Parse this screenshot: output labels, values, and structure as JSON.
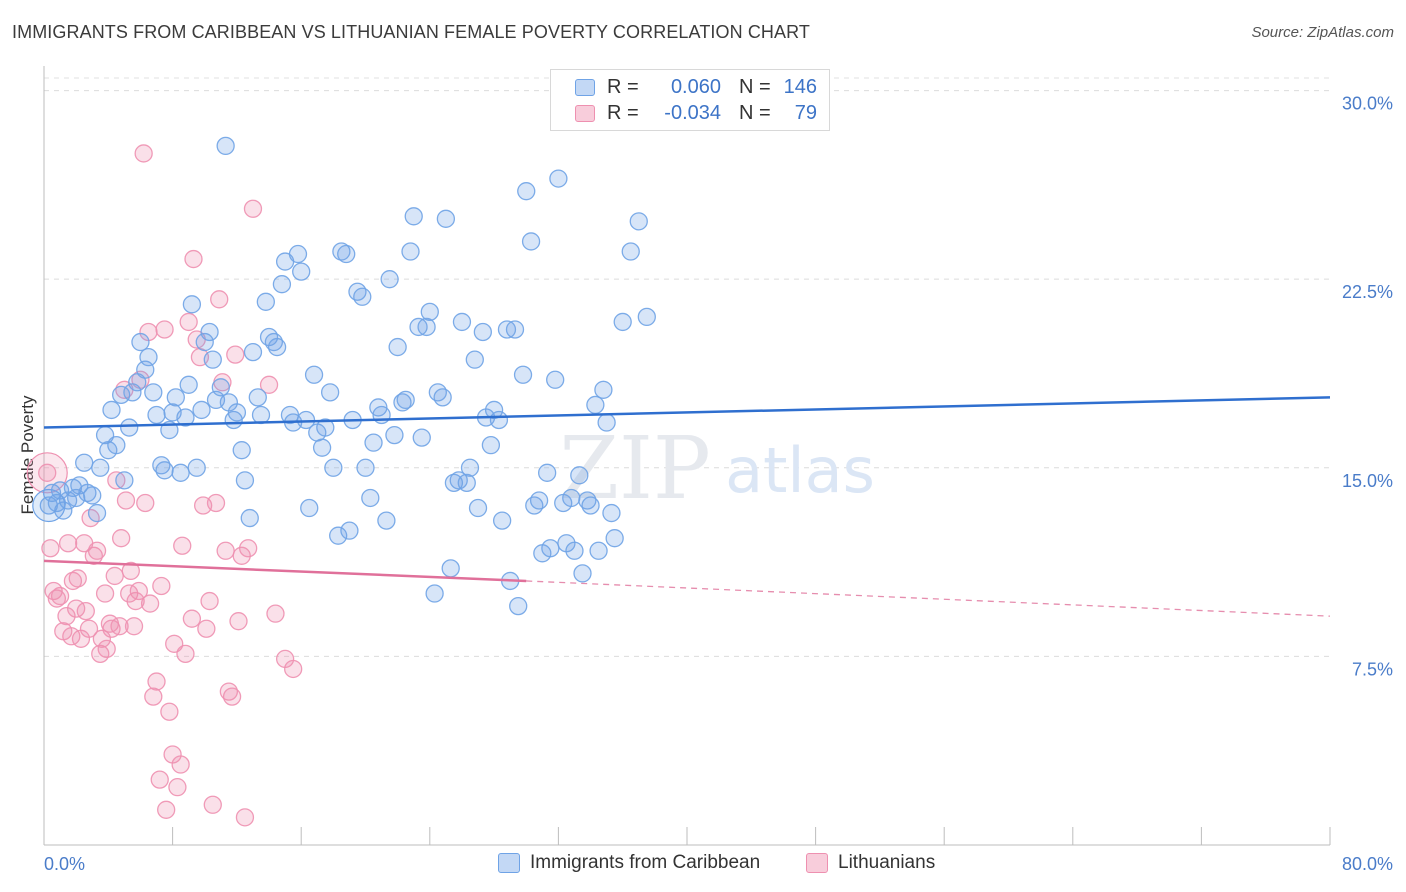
{
  "title": "IMMIGRANTS FROM CARIBBEAN VS LITHUANIAN FEMALE POVERTY CORRELATION CHART",
  "source": "Source: ZipAtlas.com",
  "watermark": {
    "zip": "ZIP",
    "atlas": "atlas"
  },
  "colors": {
    "blue": "#6fa3e6",
    "blue_line": "#2f6fcf",
    "pink": "#ee90b0",
    "pink_line": "#e0709a",
    "tick_text": "#4a7cc9"
  },
  "legend": {
    "rows": [
      {
        "series": "Immigrants from Caribbean",
        "r_label": "R =",
        "r_value": "0.060",
        "n_label": "N =",
        "n_value": "146"
      },
      {
        "series": "Lithuanians",
        "r_label": "R =",
        "r_value": "-0.034",
        "n_label": "N =",
        "n_value": "79"
      }
    ]
  },
  "bottom_legend": [
    "Immigrants from Caribbean",
    "Lithuanians"
  ],
  "chart_data": {
    "type": "scatter",
    "title": "IMMIGRANTS FROM CARIBBEAN VS LITHUANIAN FEMALE POVERTY CORRELATION CHART",
    "xlabel": "",
    "ylabel": "Female Poverty",
    "xlim": [
      0,
      80
    ],
    "ylim": [
      0,
      30.5
    ],
    "y_ticks": [
      7.5,
      15.0,
      22.5,
      30.0
    ],
    "y_tick_labels": [
      "7.5%",
      "15.0%",
      "22.5%",
      "30.0%"
    ],
    "x_tick_labels": [
      "0.0%",
      "80.0%"
    ],
    "grid": true,
    "series": [
      {
        "name": "Immigrants from Caribbean",
        "r": 0.06,
        "n": 146,
        "trend": {
          "x": [
            0,
            80
          ],
          "y": [
            16.6,
            17.8
          ]
        },
        "points": [
          [
            0.3,
            13.5
          ],
          [
            0.5,
            14.0
          ],
          [
            0.8,
            13.6
          ],
          [
            1.0,
            14.1
          ],
          [
            1.2,
            13.3
          ],
          [
            1.5,
            13.7
          ],
          [
            1.8,
            14.2
          ],
          [
            2.0,
            13.8
          ],
          [
            2.2,
            14.3
          ],
          [
            2.5,
            15.2
          ],
          [
            2.7,
            14.0
          ],
          [
            3.0,
            13.9
          ],
          [
            3.3,
            13.2
          ],
          [
            3.5,
            15.0
          ],
          [
            3.8,
            16.3
          ],
          [
            4.0,
            15.7
          ],
          [
            4.2,
            17.3
          ],
          [
            4.5,
            15.9
          ],
          [
            4.8,
            17.9
          ],
          [
            5.0,
            14.5
          ],
          [
            5.3,
            16.6
          ],
          [
            5.5,
            18.0
          ],
          [
            5.8,
            18.4
          ],
          [
            6.0,
            20.0
          ],
          [
            6.3,
            18.9
          ],
          [
            6.5,
            19.4
          ],
          [
            6.8,
            18.0
          ],
          [
            7.0,
            17.1
          ],
          [
            7.3,
            15.1
          ],
          [
            7.5,
            14.9
          ],
          [
            7.8,
            16.5
          ],
          [
            8.0,
            17.2
          ],
          [
            8.2,
            17.8
          ],
          [
            8.5,
            14.8
          ],
          [
            8.8,
            17.0
          ],
          [
            9.0,
            18.3
          ],
          [
            9.2,
            21.5
          ],
          [
            9.5,
            15.0
          ],
          [
            9.8,
            17.3
          ],
          [
            10.0,
            20.0
          ],
          [
            10.3,
            20.4
          ],
          [
            10.5,
            19.3
          ],
          [
            10.7,
            17.7
          ],
          [
            11.0,
            18.2
          ],
          [
            11.3,
            27.8
          ],
          [
            11.5,
            17.6
          ],
          [
            11.8,
            16.9
          ],
          [
            12.0,
            17.2
          ],
          [
            12.3,
            15.7
          ],
          [
            12.5,
            14.5
          ],
          [
            12.8,
            13.0
          ],
          [
            13.0,
            19.6
          ],
          [
            13.3,
            17.8
          ],
          [
            13.5,
            17.1
          ],
          [
            13.8,
            21.6
          ],
          [
            14.0,
            20.2
          ],
          [
            14.3,
            20.0
          ],
          [
            14.5,
            19.8
          ],
          [
            14.8,
            22.3
          ],
          [
            15.0,
            23.2
          ],
          [
            15.3,
            17.1
          ],
          [
            15.5,
            16.8
          ],
          [
            15.8,
            23.5
          ],
          [
            16.0,
            22.8
          ],
          [
            16.3,
            16.9
          ],
          [
            16.5,
            13.4
          ],
          [
            16.8,
            18.7
          ],
          [
            17.0,
            16.4
          ],
          [
            17.3,
            15.8
          ],
          [
            17.5,
            16.6
          ],
          [
            17.8,
            18.0
          ],
          [
            18.0,
            15.0
          ],
          [
            18.3,
            12.3
          ],
          [
            18.5,
            23.6
          ],
          [
            18.8,
            23.5
          ],
          [
            19.0,
            12.5
          ],
          [
            19.2,
            16.9
          ],
          [
            19.5,
            22.0
          ],
          [
            19.8,
            21.8
          ],
          [
            20.0,
            15.0
          ],
          [
            20.3,
            13.8
          ],
          [
            20.5,
            16.0
          ],
          [
            20.8,
            17.4
          ],
          [
            21.0,
            17.1
          ],
          [
            21.3,
            12.9
          ],
          [
            21.5,
            22.5
          ],
          [
            21.8,
            16.3
          ],
          [
            22.0,
            19.8
          ],
          [
            22.3,
            17.6
          ],
          [
            22.5,
            17.7
          ],
          [
            22.8,
            23.6
          ],
          [
            23.0,
            25.0
          ],
          [
            23.3,
            20.6
          ],
          [
            23.5,
            16.2
          ],
          [
            23.8,
            20.6
          ],
          [
            24.0,
            21.2
          ],
          [
            24.3,
            10.0
          ],
          [
            24.5,
            18.0
          ],
          [
            24.8,
            17.8
          ],
          [
            25.0,
            24.9
          ],
          [
            25.3,
            11.0
          ],
          [
            25.5,
            14.4
          ],
          [
            25.8,
            14.5
          ],
          [
            26.0,
            20.8
          ],
          [
            26.3,
            14.4
          ],
          [
            26.5,
            15.0
          ],
          [
            26.8,
            19.3
          ],
          [
            27.0,
            13.4
          ],
          [
            27.3,
            20.4
          ],
          [
            27.5,
            17.0
          ],
          [
            27.8,
            15.9
          ],
          [
            28.0,
            17.3
          ],
          [
            28.3,
            16.9
          ],
          [
            28.5,
            12.9
          ],
          [
            28.8,
            20.5
          ],
          [
            29.0,
            10.5
          ],
          [
            29.3,
            20.5
          ],
          [
            29.5,
            9.5
          ],
          [
            29.8,
            18.7
          ],
          [
            30.0,
            26.0
          ],
          [
            30.3,
            24.0
          ],
          [
            30.5,
            13.5
          ],
          [
            30.8,
            13.7
          ],
          [
            31.0,
            11.6
          ],
          [
            31.3,
            14.8
          ],
          [
            31.5,
            11.8
          ],
          [
            31.8,
            18.5
          ],
          [
            32.0,
            26.5
          ],
          [
            32.3,
            13.6
          ],
          [
            32.5,
            12.0
          ],
          [
            32.8,
            13.8
          ],
          [
            33.0,
            11.7
          ],
          [
            33.3,
            14.7
          ],
          [
            33.5,
            10.8
          ],
          [
            33.8,
            13.7
          ],
          [
            34.0,
            13.5
          ],
          [
            34.3,
            17.5
          ],
          [
            34.5,
            11.7
          ],
          [
            34.8,
            18.1
          ],
          [
            35.0,
            16.8
          ],
          [
            35.3,
            13.2
          ],
          [
            35.5,
            12.2
          ],
          [
            36.0,
            20.8
          ],
          [
            36.5,
            23.6
          ],
          [
            37.0,
            24.8
          ],
          [
            37.5,
            21.0
          ]
        ]
      },
      {
        "name": "Lithuanians",
        "r": -0.034,
        "n": 79,
        "trend": {
          "x": [
            0,
            30
          ],
          "y": [
            11.3,
            10.5
          ]
        },
        "trend_dashed": {
          "x": [
            30,
            80
          ],
          "y": [
            10.5,
            9.1
          ]
        },
        "points": [
          [
            0.2,
            14.8
          ],
          [
            0.4,
            11.8
          ],
          [
            0.6,
            10.1
          ],
          [
            0.8,
            9.8
          ],
          [
            1.0,
            9.9
          ],
          [
            1.2,
            8.5
          ],
          [
            1.4,
            9.1
          ],
          [
            1.5,
            12.0
          ],
          [
            1.7,
            8.3
          ],
          [
            1.8,
            10.5
          ],
          [
            2.0,
            9.4
          ],
          [
            2.1,
            10.6
          ],
          [
            2.3,
            8.2
          ],
          [
            2.5,
            12.0
          ],
          [
            2.6,
            9.3
          ],
          [
            2.8,
            8.6
          ],
          [
            2.9,
            13.0
          ],
          [
            3.1,
            11.5
          ],
          [
            3.3,
            11.7
          ],
          [
            3.5,
            7.6
          ],
          [
            3.6,
            8.2
          ],
          [
            3.8,
            10.0
          ],
          [
            3.9,
            7.8
          ],
          [
            4.1,
            8.8
          ],
          [
            4.2,
            8.6
          ],
          [
            4.4,
            10.7
          ],
          [
            4.5,
            14.5
          ],
          [
            4.7,
            8.7
          ],
          [
            4.8,
            12.2
          ],
          [
            5.0,
            18.1
          ],
          [
            5.1,
            13.7
          ],
          [
            5.3,
            10.0
          ],
          [
            5.4,
            10.9
          ],
          [
            5.6,
            8.7
          ],
          [
            5.7,
            9.7
          ],
          [
            5.9,
            10.1
          ],
          [
            6.0,
            18.5
          ],
          [
            6.2,
            27.5
          ],
          [
            6.3,
            13.6
          ],
          [
            6.5,
            20.4
          ],
          [
            6.6,
            9.6
          ],
          [
            6.8,
            5.9
          ],
          [
            7.0,
            6.5
          ],
          [
            7.2,
            2.6
          ],
          [
            7.3,
            10.3
          ],
          [
            7.5,
            20.5
          ],
          [
            7.6,
            1.4
          ],
          [
            7.8,
            5.3
          ],
          [
            8.0,
            3.6
          ],
          [
            8.1,
            8.0
          ],
          [
            8.3,
            2.3
          ],
          [
            8.5,
            3.2
          ],
          [
            8.6,
            11.9
          ],
          [
            8.8,
            7.6
          ],
          [
            9.0,
            20.8
          ],
          [
            9.2,
            9.0
          ],
          [
            9.3,
            23.3
          ],
          [
            9.5,
            20.1
          ],
          [
            9.7,
            19.4
          ],
          [
            9.9,
            13.5
          ],
          [
            10.1,
            8.6
          ],
          [
            10.3,
            9.7
          ],
          [
            10.5,
            1.6
          ],
          [
            10.7,
            13.6
          ],
          [
            10.9,
            21.7
          ],
          [
            11.1,
            18.4
          ],
          [
            11.3,
            11.7
          ],
          [
            11.5,
            6.1
          ],
          [
            11.7,
            5.9
          ],
          [
            11.9,
            19.5
          ],
          [
            12.1,
            8.9
          ],
          [
            12.3,
            11.5
          ],
          [
            12.5,
            1.1
          ],
          [
            12.7,
            11.8
          ],
          [
            13.0,
            25.3
          ],
          [
            14.0,
            18.3
          ],
          [
            14.4,
            9.2
          ],
          [
            15.0,
            7.4
          ],
          [
            15.5,
            7.0
          ]
        ]
      }
    ]
  }
}
